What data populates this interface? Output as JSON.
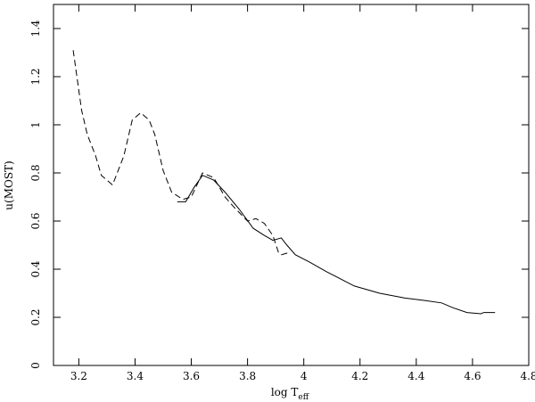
{
  "chart_data": {
    "type": "line",
    "xlabel": "log T",
    "xlabel_sub": "eff",
    "ylabel": "u(MOST)",
    "xlim": [
      3.11,
      4.8
    ],
    "xticks": [
      3.2,
      3.4,
      3.6,
      3.8,
      4,
      4.2,
      4.4,
      4.6,
      4.8
    ],
    "ylim": [
      0,
      1.5
    ],
    "yticks": [
      0,
      0.2,
      0.4,
      0.6,
      0.8,
      1,
      1.2,
      1.4
    ],
    "series": [
      {
        "color": "#000000",
        "dash": true,
        "x": [
          3.18,
          3.21,
          3.23,
          3.26,
          3.28,
          3.32,
          3.36,
          3.39,
          3.42,
          3.45,
          3.47,
          3.5,
          3.53,
          3.57,
          3.6,
          3.64,
          3.68,
          3.72,
          3.75,
          3.8,
          3.83,
          3.86,
          3.89,
          3.91,
          3.92,
          3.95
        ],
        "values": [
          1.31,
          1.06,
          0.96,
          0.87,
          0.79,
          0.75,
          0.87,
          1.02,
          1.05,
          1.02,
          0.96,
          0.81,
          0.72,
          0.69,
          0.7,
          0.8,
          0.78,
          0.7,
          0.66,
          0.6,
          0.61,
          0.59,
          0.54,
          0.47,
          0.46,
          0.47
        ]
      },
      {
        "color": "#000000",
        "dash": false,
        "x": [
          3.55,
          3.58,
          3.61,
          3.64,
          3.68,
          3.72,
          3.77,
          3.82,
          3.86,
          3.89,
          3.92,
          3.94,
          3.97,
          4.02,
          4.08,
          4.18,
          4.27,
          4.36,
          4.43,
          4.49,
          4.53,
          4.58,
          4.63,
          4.64,
          4.68
        ],
        "values": [
          0.68,
          0.68,
          0.74,
          0.79,
          0.77,
          0.72,
          0.65,
          0.57,
          0.54,
          0.52,
          0.53,
          0.5,
          0.46,
          0.43,
          0.39,
          0.33,
          0.3,
          0.28,
          0.27,
          0.26,
          0.24,
          0.22,
          0.215,
          0.22,
          0.22
        ]
      }
    ]
  }
}
